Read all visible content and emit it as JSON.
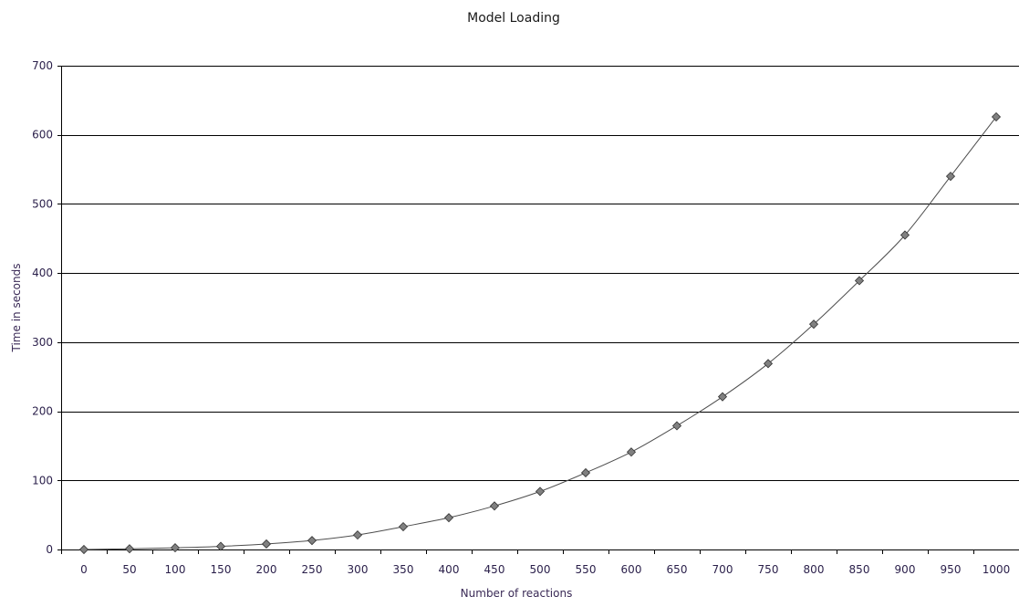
{
  "chart_data": {
    "type": "line",
    "title": "Model Loading",
    "xlabel": "Number of reactions",
    "ylabel": "Time in seconds",
    "categories": [
      "0",
      "50",
      "100",
      "150",
      "200",
      "250",
      "300",
      "350",
      "400",
      "450",
      "500",
      "550",
      "600",
      "650",
      "700",
      "750",
      "800",
      "850",
      "900",
      "950",
      "1000"
    ],
    "ylim": [
      0,
      700
    ],
    "yticks": [
      "0",
      "100",
      "200",
      "300",
      "400",
      "500",
      "600",
      "700"
    ],
    "grid": "horizontal",
    "legend": "none",
    "colors": {
      "line": "#4d4d4d",
      "marker_fill": "#808080",
      "marker_stroke": "#333333",
      "gridline": "#000000"
    },
    "series": [
      {
        "values": [
          0,
          1,
          2.5,
          4.5,
          8,
          13,
          21,
          33,
          46,
          63,
          84,
          111,
          141,
          179,
          221,
          269,
          326,
          389,
          455,
          540,
          626
        ]
      }
    ]
  }
}
